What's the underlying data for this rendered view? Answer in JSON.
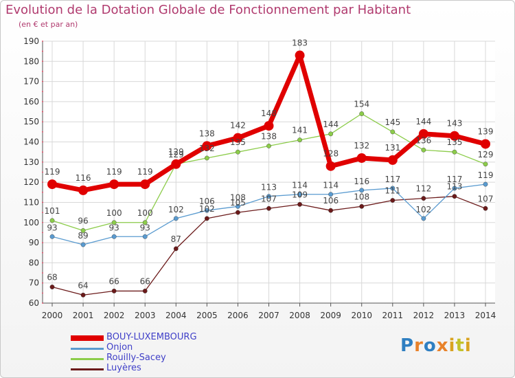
{
  "chart_data": {
    "type": "line",
    "title": "Evolution de la Dotation Globale de Fonctionnement par Habitant",
    "subtitle": "(en € et par an)",
    "xlabel": "",
    "ylabel": "",
    "ylim": [
      60,
      190
    ],
    "yticks": [
      60,
      70,
      80,
      90,
      100,
      110,
      120,
      130,
      140,
      150,
      160,
      170,
      180,
      190
    ],
    "categories": [
      "2000",
      "2001",
      "2002",
      "2003",
      "2004",
      "2005",
      "2006",
      "2007",
      "2008",
      "2009",
      "2010",
      "2011",
      "2012",
      "2013",
      "2014"
    ],
    "grid": true,
    "legend_position": "bottom-left",
    "series": [
      {
        "name": "BOUY-LUXEMBOURG",
        "color": "#e00000",
        "values": [
          119,
          116,
          119,
          119,
          129,
          138,
          142,
          148,
          183,
          128,
          132,
          131,
          144,
          143,
          139
        ]
      },
      {
        "name": "Onjon",
        "color": "#5a9bd0",
        "values": [
          93,
          89,
          93,
          93,
          102,
          106,
          108,
          113,
          114,
          114,
          116,
          117,
          102,
          117,
          119
        ]
      },
      {
        "name": "Rouilly-Sacey",
        "color": "#8ccc4a",
        "values": [
          101,
          96,
          100,
          100,
          129,
          132,
          135,
          138,
          141,
          144,
          154,
          145,
          136,
          135,
          129
        ]
      },
      {
        "name": "Luyères",
        "color": "#6b1a1a",
        "values": [
          68,
          64,
          66,
          66,
          87,
          102,
          105,
          107,
          109,
          106,
          108,
          111,
          112,
          113,
          107
        ]
      }
    ]
  },
  "data_labels": [
    {
      "series": 0,
      "values": [
        "119",
        "116",
        "119",
        "119",
        "129",
        "138",
        "142",
        "148",
        "183",
        "128",
        "132",
        "131",
        "144",
        "143",
        "139"
      ]
    },
    {
      "series": 1,
      "values": [
        "93",
        "89",
        "93",
        "93",
        "102",
        "106",
        "108",
        "113",
        "114",
        "114",
        "116",
        "117",
        "102",
        "117",
        "119"
      ]
    },
    {
      "series": 2,
      "values": [
        "101",
        "96",
        "100",
        "100",
        "129",
        "132",
        "135",
        "138",
        "141",
        "144",
        "154",
        "145",
        "136",
        "135",
        "129"
      ]
    },
    {
      "series": 3,
      "values": [
        "68",
        "64",
        "66",
        "66",
        "87",
        "102",
        "105",
        "107",
        "109",
        "106",
        "108",
        "111",
        "112",
        "113",
        "107"
      ]
    }
  ],
  "logo": {
    "text": "Proxiti",
    "letters": [
      "P",
      "r",
      "o",
      "x",
      "i",
      "t",
      "i"
    ],
    "colors": [
      "#2f7fc1",
      "#e8822a",
      "#2f7fc1",
      "#e8822a",
      "#d9a320",
      "#c2c22a",
      "#d9a320"
    ]
  }
}
